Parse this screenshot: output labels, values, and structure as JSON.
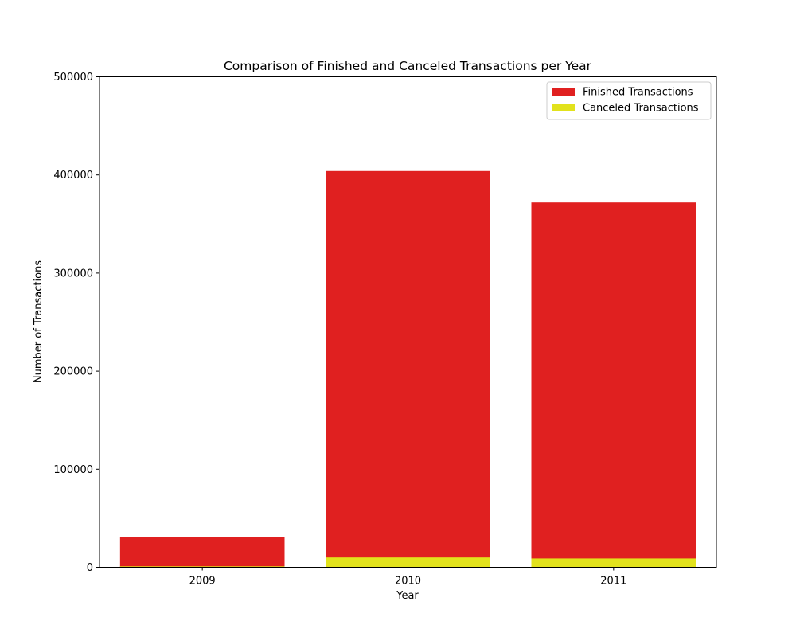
{
  "chart_data": {
    "type": "bar",
    "title": "Comparison of Finished and Canceled Transactions per Year",
    "xlabel": "Year",
    "ylabel": "Number of Transactions",
    "categories": [
      "2009",
      "2010",
      "2011"
    ],
    "series": [
      {
        "name": "Finished Transactions",
        "color": "#e02020",
        "values": [
          31000,
          404000,
          372000
        ]
      },
      {
        "name": "Canceled Transactions",
        "color": "#e2e21c",
        "values": [
          1000,
          10000,
          9000
        ]
      }
    ],
    "ylim": [
      0,
      500000
    ],
    "yticks": [
      0,
      100000,
      200000,
      300000,
      400000,
      500000
    ],
    "grid": false,
    "legend_position": "top-right",
    "bar_mode": "overlay"
  }
}
